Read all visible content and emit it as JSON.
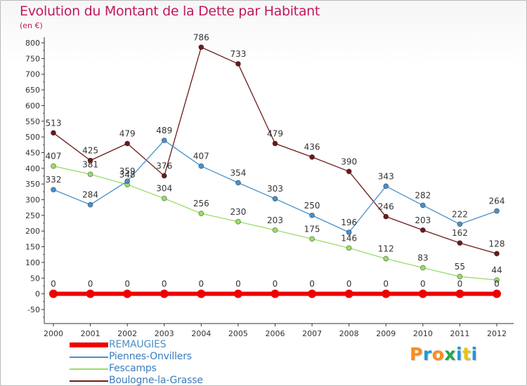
{
  "chart_data": {
    "type": "line",
    "title": "Evolution du Montant de la Dette par Habitant",
    "subtitle": "(en €)",
    "x": [
      "2000",
      "2001",
      "2002",
      "2003",
      "2004",
      "2005",
      "2006",
      "2007",
      "2008",
      "2009",
      "2010",
      "2011",
      "2012"
    ],
    "ylim": [
      -50,
      800
    ],
    "yticks": [
      -50,
      0,
      50,
      100,
      150,
      200,
      250,
      300,
      350,
      400,
      450,
      500,
      550,
      600,
      650,
      700,
      750,
      800
    ],
    "grid": false,
    "legend_position": "bottom-left",
    "series": [
      {
        "name": "REMAUGIES",
        "color": "#ee0000",
        "values": [
          0,
          0,
          0,
          0,
          0,
          0,
          0,
          0,
          0,
          0,
          0,
          0,
          0
        ]
      },
      {
        "name": "Piennes-Onvillers",
        "color": "#4a90c8",
        "values": [
          332,
          284,
          359,
          489,
          407,
          354,
          303,
          250,
          196,
          343,
          282,
          222,
          264
        ]
      },
      {
        "name": "Fescamps",
        "color": "#99dd66",
        "values": [
          407,
          381,
          348,
          304,
          256,
          230,
          203,
          175,
          146,
          112,
          83,
          55,
          44
        ]
      },
      {
        "name": "Boulogne-la-Grasse",
        "color": "#6b1a1a",
        "values": [
          513,
          425,
          479,
          376,
          786,
          733,
          479,
          436,
          390,
          246,
          203,
          162,
          128
        ]
      }
    ]
  },
  "logo": {
    "text": "Proxiti",
    "colors": [
      "#ff8c1a",
      "#1f9ad6",
      "#ff8c1a",
      "#22a84a",
      "#1f9ad6",
      "#e8c21a",
      "#1f9ad6"
    ]
  }
}
